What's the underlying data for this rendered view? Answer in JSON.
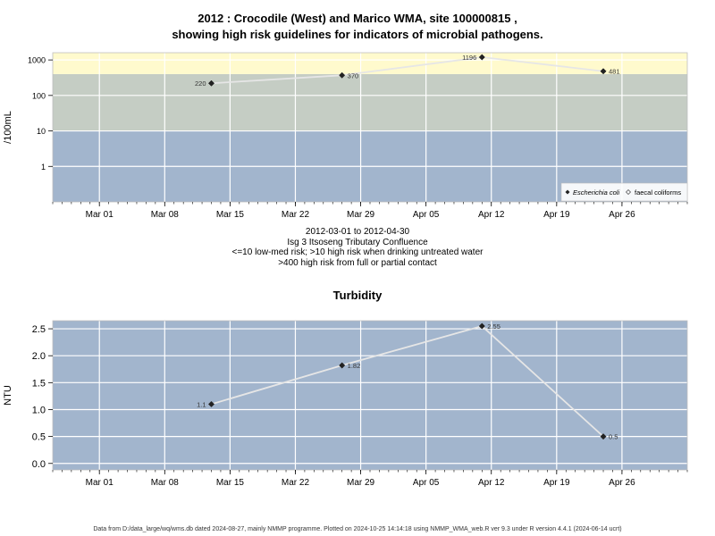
{
  "chart_data": [
    {
      "type": "line",
      "title_line1": "2012 : Crocodile (West) and Marico WMA, site 100000815 ,",
      "title_line2": "showing high risk guidelines for indicators of microbial pathogens.",
      "ylabel": "/100mL",
      "yscale": "log",
      "ylim": [
        0.1,
        1600
      ],
      "yticks": [
        1,
        10,
        100,
        1000
      ],
      "ytick_labels": [
        "1",
        "10",
        "100",
        "1000"
      ],
      "xlim": [
        "2012-02-25",
        "2012-05-03"
      ],
      "xticks": [
        "2012-03-01",
        "2012-03-08",
        "2012-03-15",
        "2012-03-22",
        "2012-03-29",
        "2012-04-05",
        "2012-04-12",
        "2012-04-19",
        "2012-04-26"
      ],
      "xtick_labels": [
        "Mar 01",
        "Mar 08",
        "Mar 15",
        "Mar 22",
        "Mar 29",
        "Apr 05",
        "Apr 12",
        "Apr 19",
        "Apr 26"
      ],
      "bands": [
        {
          "from": 0.1,
          "to": 10,
          "color": "#a2b5cd"
        },
        {
          "from": 10,
          "to": 400,
          "color": "#c5cdc4"
        },
        {
          "from": 400,
          "to": 1600,
          "color": "#fffacd"
        }
      ],
      "grid": true,
      "series": [
        {
          "name": "Escherichia coli",
          "color": "#e6e6e6",
          "marker": "filled-diamond",
          "x": [
            "2012-03-13",
            "2012-03-27",
            "2012-04-11",
            "2012-04-24"
          ],
          "values": [
            220,
            370,
            1196,
            481
          ],
          "labels": [
            "220",
            "370",
            "1196",
            "481"
          ]
        },
        {
          "name": "faecal coliforms",
          "marker": "open-diamond",
          "x": [],
          "values": [],
          "labels": []
        }
      ],
      "legend_position": "bottom-right",
      "notes": [
        "2012-03-01 to 2012-04-30",
        "Isg 3 Itsoseng Tributary Confluence",
        "<=10 low-med risk; >10 high risk when drinking untreated water",
        ">400 high risk from full or partial contact"
      ]
    },
    {
      "type": "line",
      "title": "Turbidity",
      "ylabel": "NTU",
      "ylim": [
        -0.12,
        2.65
      ],
      "yticks": [
        0.0,
        0.5,
        1.0,
        1.5,
        2.0,
        2.5
      ],
      "ytick_labels": [
        "0.0",
        "0.5",
        "1.0",
        "1.5",
        "2.0",
        "2.5"
      ],
      "xlim": [
        "2012-02-25",
        "2012-05-03"
      ],
      "xticks": [
        "2012-03-01",
        "2012-03-08",
        "2012-03-15",
        "2012-03-22",
        "2012-03-29",
        "2012-04-05",
        "2012-04-12",
        "2012-04-19",
        "2012-04-26"
      ],
      "xtick_labels": [
        "Mar 01",
        "Mar 08",
        "Mar 15",
        "Mar 22",
        "Mar 29",
        "Apr 05",
        "Apr 12",
        "Apr 19",
        "Apr 26"
      ],
      "background": "#a2b5cd",
      "grid": true,
      "series": [
        {
          "color": "#e6e6e6",
          "marker": "filled-diamond",
          "x": [
            "2012-03-13",
            "2012-03-27",
            "2012-04-11",
            "2012-04-24"
          ],
          "values": [
            1.1,
            1.82,
            2.55,
            0.5
          ],
          "labels": [
            "1.1",
            "1.82",
            "2.55",
            "0.5"
          ]
        }
      ]
    }
  ],
  "footer": "Data from D:/data_large/wq/wms.db dated 2024-08-27, mainly NMMP programme. Plotted on 2024-10-25 14:14:18 using NMMP_WMA_web.R ver 9.3 under R version 4.4.1 (2024-06-14 ucrt)"
}
